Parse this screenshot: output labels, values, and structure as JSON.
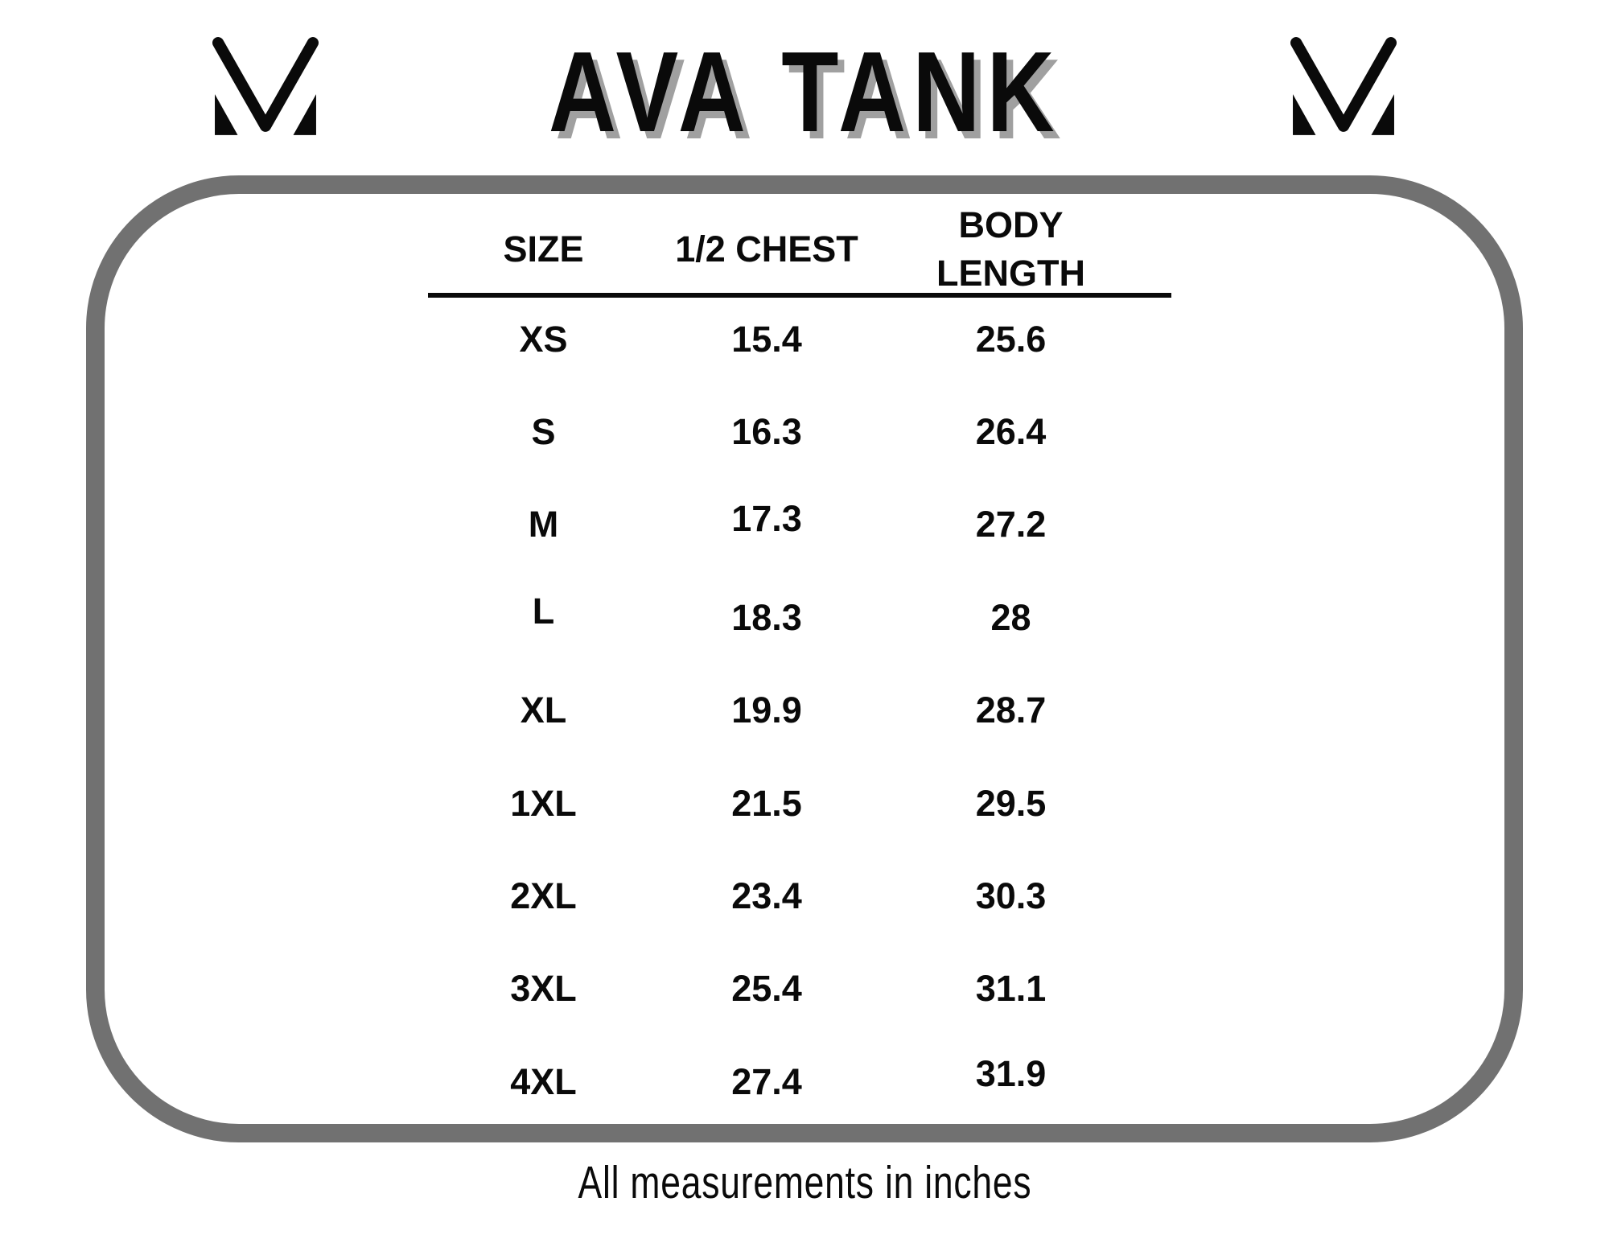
{
  "page": {
    "title": "AVA TANK",
    "footer_note": "All measurements in inches"
  },
  "brand": {
    "logo_icon": "mv-monogram"
  },
  "table": {
    "headers": [
      "SIZE",
      "1/2 CHEST",
      "BODY LENGTH"
    ],
    "rows": [
      {
        "size": "XS",
        "half_chest": "15.4",
        "body_length": "25.6"
      },
      {
        "size": "S",
        "half_chest": "16.3",
        "body_length": "26.4"
      },
      {
        "size": "M",
        "half_chest": "17.3",
        "body_length": "27.2"
      },
      {
        "size": "L",
        "half_chest": "18.3",
        "body_length": "28"
      },
      {
        "size": "XL",
        "half_chest": "19.9",
        "body_length": "28.7"
      },
      {
        "size": "1XL",
        "half_chest": "21.5",
        "body_length": "29.5"
      },
      {
        "size": "2XL",
        "half_chest": "23.4",
        "body_length": "30.3"
      },
      {
        "size": "3XL",
        "half_chest": "25.4",
        "body_length": "31.1"
      },
      {
        "size": "4XL",
        "half_chest": "27.4",
        "body_length": "31.9"
      }
    ]
  },
  "colors": {
    "text": "#0a0a0a",
    "frame_gray": "#717171",
    "title_shadow": "#a0a0a0",
    "background": "#ffffff"
  }
}
